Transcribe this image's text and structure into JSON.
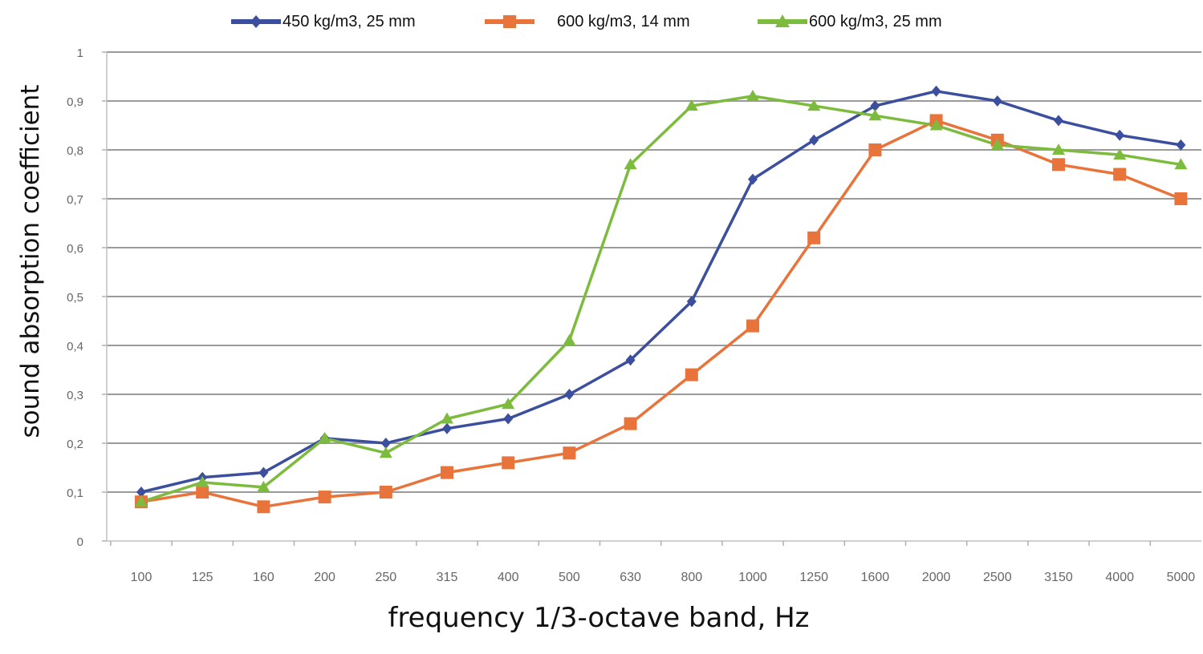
{
  "chart_data": {
    "type": "line",
    "xlabel": "frequency 1/3-octave band, Hz",
    "ylabel": "sound absorption coefficient",
    "categories": [
      "100",
      "125",
      "160",
      "200",
      "250",
      "315",
      "400",
      "500",
      "630",
      "800",
      "1000",
      "1250",
      "1600",
      "2000",
      "2500",
      "3150",
      "4000",
      "5000"
    ],
    "ylim": [
      0,
      1
    ],
    "yticks": [
      "0",
      "0,1",
      "0,2",
      "0,3",
      "0,4",
      "0,5",
      "0,6",
      "0,7",
      "0,8",
      "0,9",
      "1"
    ],
    "grid": true,
    "legend_position": "top",
    "series": [
      {
        "name": "450 kg/m3, 25 mm",
        "color": "#3b4f9e",
        "marker": "diamond",
        "values": [
          0.1,
          0.13,
          0.14,
          0.21,
          0.2,
          0.23,
          0.25,
          0.3,
          0.37,
          0.49,
          0.74,
          0.82,
          0.89,
          0.92,
          0.9,
          0.86,
          0.83,
          0.81
        ]
      },
      {
        "name": "600 kg/m3, 14 mm",
        "color": "#e8743b",
        "marker": "square",
        "values": [
          0.08,
          0.1,
          0.07,
          0.09,
          0.1,
          0.14,
          0.16,
          0.18,
          0.24,
          0.34,
          0.44,
          0.62,
          0.8,
          0.86,
          0.82,
          0.77,
          0.75,
          0.7
        ]
      },
      {
        "name": "600 kg/m3, 25 mm",
        "color": "#7dbb3f",
        "marker": "triangle",
        "values": [
          0.08,
          0.12,
          0.11,
          0.21,
          0.18,
          0.25,
          0.28,
          0.41,
          0.77,
          0.89,
          0.91,
          0.89,
          0.87,
          0.85,
          0.81,
          0.8,
          0.79,
          0.77
        ]
      }
    ]
  }
}
